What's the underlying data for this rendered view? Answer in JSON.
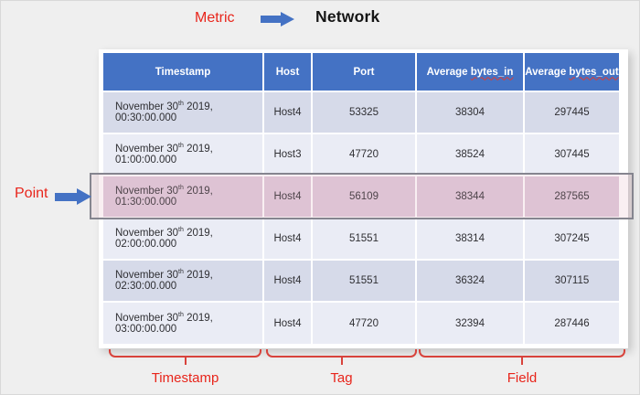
{
  "annotations": {
    "metric_label": "Metric",
    "metric_value": "Network",
    "point_label": "Point",
    "brace_labels": {
      "timestamp": "Timestamp",
      "tag": "Tag",
      "field": "Field"
    }
  },
  "colors": {
    "header_blue": "#4472c4",
    "row_dark": "#d6dae9",
    "row_light": "#eaecf5",
    "highlight_pink": "#decadb",
    "annotation_red": "#e8251b",
    "brace_red": "#d8433c"
  },
  "table": {
    "headers": {
      "timestamp": "Timestamp",
      "host": "Host",
      "port": "Port",
      "bytes_in_prefix": "Average ",
      "bytes_in_wavy": "bytes_in",
      "bytes_out_prefix": "Average ",
      "bytes_out_wavy": "bytes_out"
    },
    "rows": [
      {
        "ts_pre": "November 30",
        "ts_sup": "th",
        "ts_post": " 2019, 00:30:00.000",
        "host": "Host4",
        "port": "53325",
        "bytes_in": "38304",
        "bytes_out": "297445"
      },
      {
        "ts_pre": "November 30",
        "ts_sup": "th",
        "ts_post": " 2019, 01:00:00.000",
        "host": "Host3",
        "port": "47720",
        "bytes_in": "38524",
        "bytes_out": "307445"
      },
      {
        "ts_pre": "November 30",
        "ts_sup": "th",
        "ts_post": " 2019, 01:30:00.000",
        "host": "Host4",
        "port": "56109",
        "bytes_in": "38344",
        "bytes_out": "287565"
      },
      {
        "ts_pre": "November 30",
        "ts_sup": "th",
        "ts_post": " 2019, 02:00:00.000",
        "host": "Host4",
        "port": "51551",
        "bytes_in": "38314",
        "bytes_out": "307245"
      },
      {
        "ts_pre": "November 30",
        "ts_sup": "th",
        "ts_post": " 2019, 02:30:00.000",
        "host": "Host4",
        "port": "51551",
        "bytes_in": "36324",
        "bytes_out": "307115"
      },
      {
        "ts_pre": "November 30",
        "ts_sup": "th",
        "ts_post": " 2019, 03:00:00.000",
        "host": "Host4",
        "port": "47720",
        "bytes_in": "32394",
        "bytes_out": "287446"
      }
    ]
  }
}
